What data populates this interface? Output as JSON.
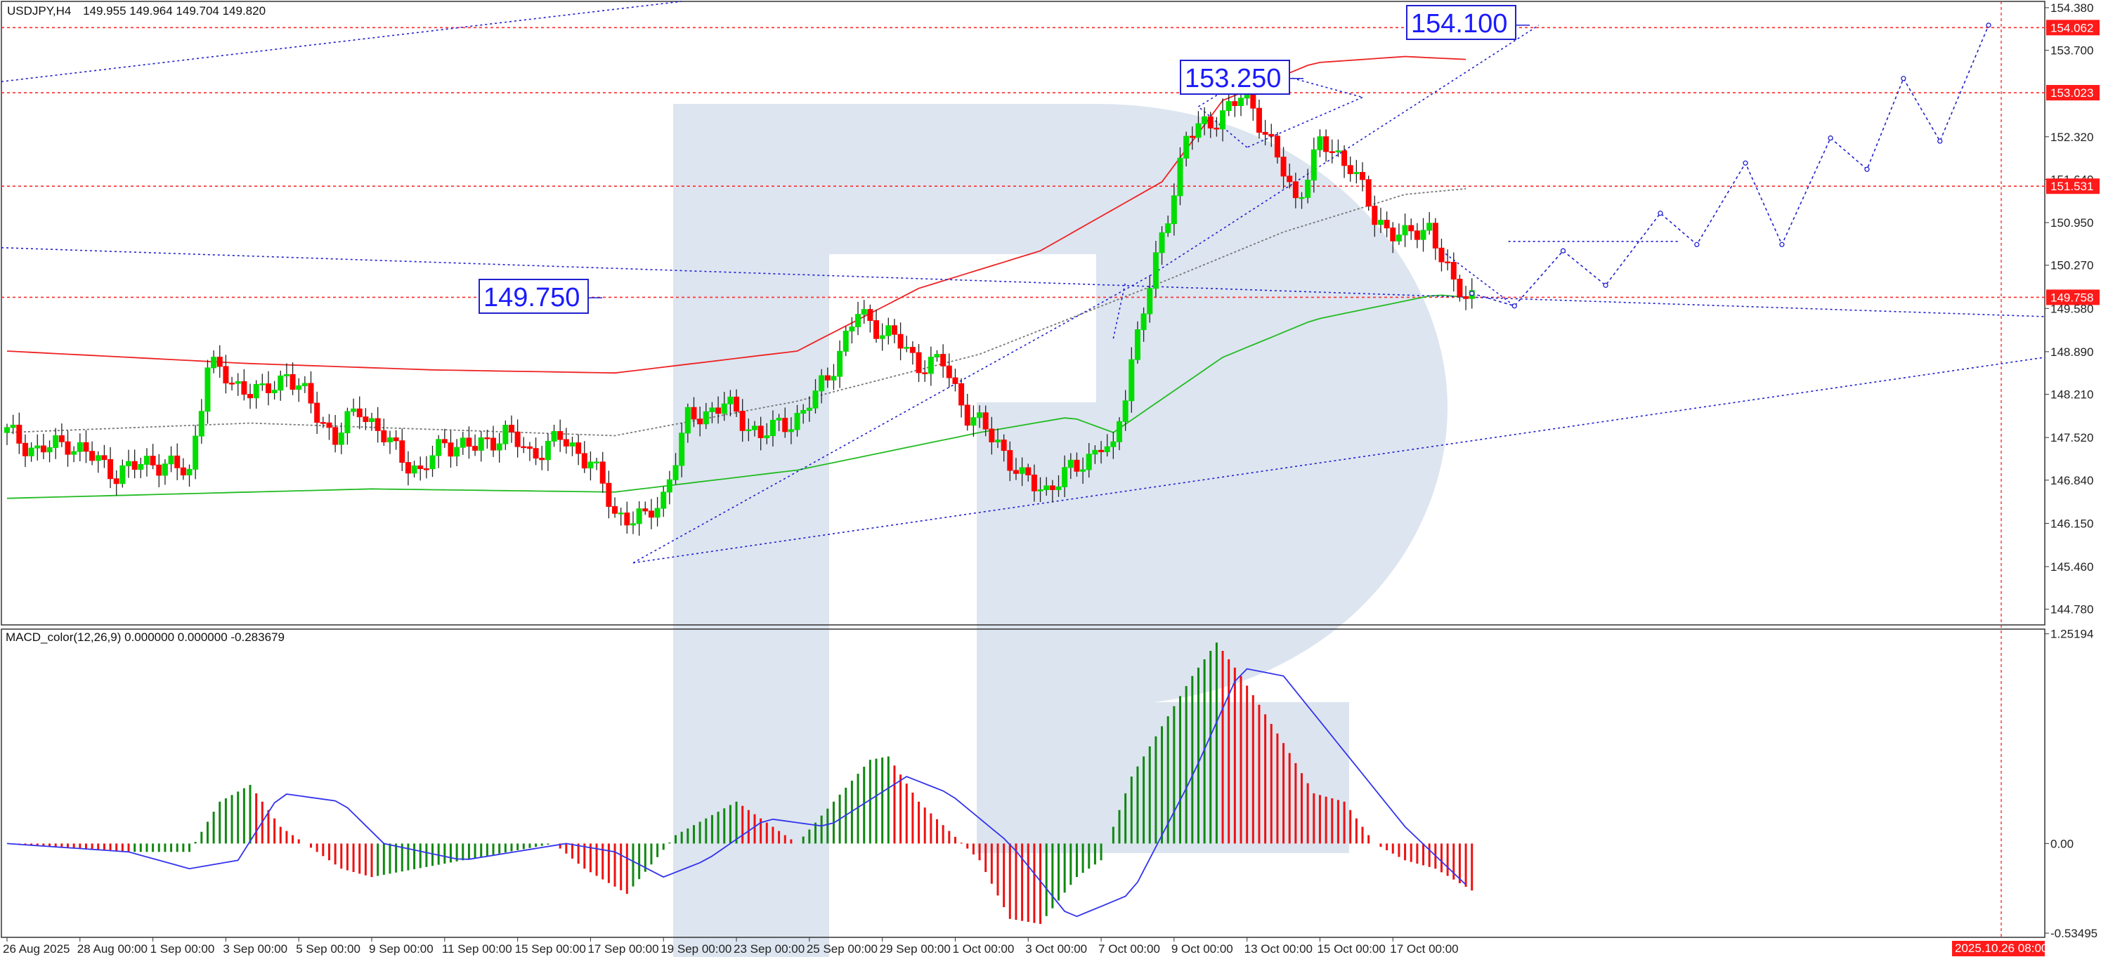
{
  "header": {
    "symbol_info": "USDJPY,H4",
    "ohlc": "149.955 149.964 149.704 149.820"
  },
  "indicator": {
    "label": "MACD_color(12,26,9) 0.000000 0.000000 -0.283679",
    "ticks": [
      {
        "label": "1.25194",
        "value": 1.25194
      },
      {
        "label": "0.00",
        "value": 0.0
      },
      {
        "label": "-0.53495",
        "value": -0.53495
      }
    ]
  },
  "colors": {
    "bull": "#00dd00",
    "bear": "#ff0000",
    "level": "#ff2a2a",
    "trend": "#2020d0",
    "ma_red": "#ee2222",
    "ma_green": "#22bb22",
    "macd_green": "#118811",
    "macd_red": "#ee1111",
    "signal": "#3333ee",
    "badge": "#ff1a1a"
  },
  "callouts": [
    {
      "label": "154.100",
      "value": 154.1
    },
    {
      "label": "153.250",
      "value": 153.25
    },
    {
      "label": "149.750",
      "value": 149.75
    }
  ],
  "price_badges": [
    {
      "label": "154.062",
      "value": 154.062
    },
    {
      "label": "153.023",
      "value": 153.023
    },
    {
      "label": "151.531",
      "value": 151.531
    },
    {
      "label": "149.758",
      "value": 149.758
    }
  ],
  "time_badge": "2025.10.26 08:00",
  "chart_data": [
    {
      "type": "candlestick",
      "title": "",
      "x_ticks": [
        "26 Aug 2025",
        "28 Aug 00:00",
        "1 Sep 00:00",
        "3 Sep 00:00",
        "5 Sep 00:00",
        "9 Sep 00:00",
        "11 Sep 00:00",
        "15 Sep 00:00",
        "17 Sep 00:00",
        "19 Sep 00:00",
        "23 Sep 00:00",
        "25 Sep 00:00",
        "29 Sep 00:00",
        "1 Oct 00:00",
        "3 Oct 00:00",
        "7 Oct 00:00",
        "9 Oct 00:00",
        "13 Oct 00:00",
        "15 Oct 00:00",
        "17 Oct 00:00"
      ],
      "y_ticks": [
        {
          "label": "154.380",
          "value": 154.38
        },
        {
          "label": "153.700",
          "value": 153.7
        },
        {
          "label": "152.320",
          "value": 152.32
        },
        {
          "label": "151.640",
          "value": 151.64
        },
        {
          "label": "150.950",
          "value": 150.95
        },
        {
          "label": "150.270",
          "value": 150.27
        },
        {
          "label": "149.580",
          "value": 149.58
        },
        {
          "label": "148.890",
          "value": 148.89
        },
        {
          "label": "148.210",
          "value": 148.21
        },
        {
          "label": "147.520",
          "value": 147.52
        },
        {
          "label": "146.840",
          "value": 146.84
        },
        {
          "label": "146.150",
          "value": 146.15
        },
        {
          "label": "145.460",
          "value": 145.46
        },
        {
          "label": "144.780",
          "value": 144.78
        }
      ],
      "ylim": [
        144.53,
        154.48
      ],
      "horizontal_levels": [
        154.062,
        153.023,
        151.531,
        149.758
      ],
      "price_path": [
        [
          0,
          147.6
        ],
        [
          5,
          147.3
        ],
        [
          10,
          147.45
        ],
        [
          14,
          147.2
        ],
        [
          18,
          146.95
        ],
        [
          24,
          147.15
        ],
        [
          30,
          146.95
        ],
        [
          33,
          148.7
        ],
        [
          37,
          148.4
        ],
        [
          42,
          148.2
        ],
        [
          46,
          148.55
        ],
        [
          50,
          148.05
        ],
        [
          54,
          147.5
        ],
        [
          58,
          148.0
        ],
        [
          63,
          147.4
        ],
        [
          68,
          146.95
        ],
        [
          72,
          147.45
        ],
        [
          77,
          147.35
        ],
        [
          82,
          147.6
        ],
        [
          86,
          147.25
        ],
        [
          91,
          147.5
        ],
        [
          96,
          147.15
        ],
        [
          100,
          146.3
        ],
        [
          105,
          146.2
        ],
        [
          108,
          146.6
        ],
        [
          112,
          147.8
        ],
        [
          118,
          148.05
        ],
        [
          124,
          147.55
        ],
        [
          131,
          147.9
        ],
        [
          135,
          148.5
        ],
        [
          140,
          149.5
        ],
        [
          146,
          149.1
        ],
        [
          150,
          148.7
        ],
        [
          154,
          148.7
        ],
        [
          158,
          147.9
        ],
        [
          163,
          147.45
        ],
        [
          167,
          146.85
        ],
        [
          171,
          146.7
        ],
        [
          176,
          147.05
        ],
        [
          180,
          147.4
        ],
        [
          182,
          147.25
        ],
        [
          185,
          148.8
        ],
        [
          189,
          150.3
        ],
        [
          194,
          152.3
        ],
        [
          200,
          152.7
        ],
        [
          204,
          153.0
        ],
        [
          207,
          152.4
        ],
        [
          212,
          151.3
        ],
        [
          216,
          152.2
        ],
        [
          221,
          151.9
        ],
        [
          225,
          151.0
        ],
        [
          230,
          150.7
        ],
        [
          234,
          150.9
        ],
        [
          238,
          149.9
        ],
        [
          241,
          149.82
        ]
      ],
      "moving_averages": [
        {
          "color": "red",
          "points": [
            [
              0,
              148.9
            ],
            [
              40,
              148.7
            ],
            [
              70,
              148.6
            ],
            [
              100,
              148.55
            ],
            [
              130,
              148.9
            ],
            [
              150,
              149.9
            ],
            [
              170,
              150.5
            ],
            [
              190,
              151.6
            ],
            [
              200,
              152.9
            ],
            [
              215,
              153.5
            ],
            [
              230,
              153.6
            ],
            [
              241,
              153.55
            ]
          ]
        },
        {
          "color": "green",
          "points": [
            [
              0,
              146.55
            ],
            [
              60,
              146.7
            ],
            [
              100,
              146.65
            ],
            [
              130,
              147.0
            ],
            [
              160,
              147.6
            ],
            [
              175,
              147.85
            ],
            [
              182,
              147.6
            ],
            [
              200,
              148.8
            ],
            [
              215,
              149.4
            ],
            [
              235,
              149.8
            ],
            [
              241,
              149.75
            ]
          ]
        },
        {
          "color": "gray-dotted",
          "points": [
            [
              0,
              147.6
            ],
            [
              40,
              147.75
            ],
            [
              100,
              147.55
            ],
            [
              130,
              148.1
            ],
            [
              160,
              148.85
            ],
            [
              190,
              150.0
            ],
            [
              210,
              150.8
            ],
            [
              230,
              151.4
            ],
            [
              241,
              151.5
            ]
          ]
        }
      ],
      "forecast_path": [
        [
          241,
          149.82
        ],
        [
          248,
          149.62
        ],
        [
          256,
          150.5
        ],
        [
          263,
          149.95
        ],
        [
          272,
          151.1
        ],
        [
          278,
          150.6
        ],
        [
          286,
          151.9
        ],
        [
          292,
          150.6
        ],
        [
          300,
          152.3
        ],
        [
          306,
          151.8
        ],
        [
          312,
          153.25
        ],
        [
          318,
          152.25
        ],
        [
          326,
          154.1
        ]
      ]
    },
    {
      "type": "bar",
      "title": "",
      "series_colors": [
        "green",
        "red"
      ],
      "ylim": [
        -0.56,
        1.28
      ],
      "macd_path": [
        [
          0,
          0.0
        ],
        [
          20,
          -0.05
        ],
        [
          30,
          -0.05
        ],
        [
          35,
          0.25
        ],
        [
          40,
          0.35
        ],
        [
          45,
          0.1
        ],
        [
          55,
          -0.15
        ],
        [
          60,
          -0.2
        ],
        [
          75,
          -0.1
        ],
        [
          90,
          0.0
        ],
        [
          95,
          -0.15
        ],
        [
          102,
          -0.3
        ],
        [
          110,
          0.05
        ],
        [
          120,
          0.25
        ],
        [
          130,
          0.0
        ],
        [
          142,
          0.5
        ],
        [
          145,
          0.52
        ],
        [
          150,
          0.25
        ],
        [
          160,
          -0.1
        ],
        [
          165,
          -0.45
        ],
        [
          170,
          -0.48
        ],
        [
          176,
          -0.2
        ],
        [
          180,
          -0.1
        ],
        [
          185,
          0.4
        ],
        [
          195,
          1.0
        ],
        [
          199,
          1.2
        ],
        [
          203,
          1.0
        ],
        [
          210,
          0.6
        ],
        [
          215,
          0.3
        ],
        [
          220,
          0.25
        ],
        [
          225,
          0.0
        ],
        [
          230,
          -0.1
        ],
        [
          235,
          -0.15
        ],
        [
          241,
          -0.28
        ]
      ],
      "signal_path": [
        [
          0,
          0.0
        ],
        [
          20,
          -0.05
        ],
        [
          30,
          -0.15
        ],
        [
          38,
          -0.1
        ],
        [
          45,
          0.3
        ],
        [
          55,
          0.25
        ],
        [
          62,
          0.0
        ],
        [
          75,
          -0.1
        ],
        [
          92,
          0.0
        ],
        [
          100,
          -0.05
        ],
        [
          108,
          -0.2
        ],
        [
          115,
          -0.1
        ],
        [
          125,
          0.15
        ],
        [
          135,
          0.1
        ],
        [
          148,
          0.4
        ],
        [
          155,
          0.3
        ],
        [
          165,
          0.0
        ],
        [
          175,
          -0.45
        ],
        [
          185,
          -0.3
        ],
        [
          195,
          0.4
        ],
        [
          203,
          1.05
        ],
        [
          210,
          1.0
        ],
        [
          220,
          0.55
        ],
        [
          230,
          0.1
        ],
        [
          241,
          -0.28
        ]
      ]
    }
  ]
}
